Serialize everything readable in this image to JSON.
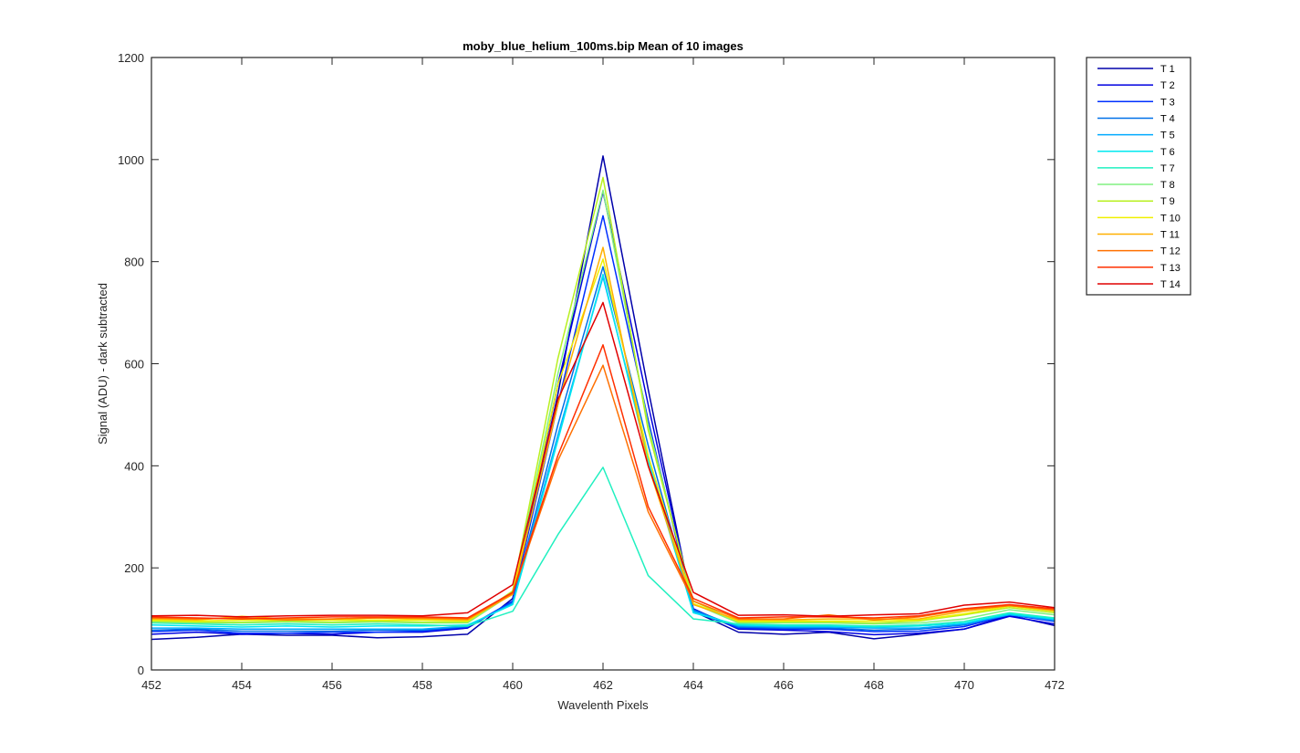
{
  "chart_data": {
    "type": "line",
    "title": "moby_blue_helium_100ms.bip  Mean of 10 images",
    "xlabel": "Wavelenth Pixels",
    "ylabel": "Signal (ADU) - dark subtracted",
    "xlim": [
      452,
      472
    ],
    "ylim": [
      0,
      1200
    ],
    "xticks": [
      452,
      454,
      456,
      458,
      460,
      462,
      464,
      466,
      468,
      470,
      472
    ],
    "yticks": [
      0,
      200,
      400,
      600,
      800,
      1000,
      1200
    ],
    "grid": false,
    "legend_position": "outside-top-right",
    "x": [
      452,
      453,
      454,
      455,
      456,
      457,
      458,
      459,
      460,
      461,
      462,
      463,
      464,
      465,
      466,
      467,
      468,
      469,
      470,
      471,
      472
    ],
    "series": [
      {
        "name": "T 1",
        "color": "#0000AA",
        "values": [
          60,
          64,
          70,
          68,
          68,
          63,
          65,
          70,
          140,
          540,
          1007,
          550,
          115,
          74,
          70,
          74,
          61,
          70,
          80,
          107,
          87
        ]
      },
      {
        "name": "T 2",
        "color": "#0000E0",
        "values": [
          70,
          74,
          70,
          72,
          70,
          74,
          74,
          82,
          135,
          560,
          937,
          520,
          120,
          80,
          78,
          75,
          69,
          72,
          80,
          105,
          90
        ]
      },
      {
        "name": "T 3",
        "color": "#0030FF",
        "values": [
          75,
          78,
          72,
          72,
          74,
          74,
          76,
          84,
          135,
          520,
          890,
          490,
          115,
          82,
          80,
          80,
          75,
          76,
          85,
          108,
          95
        ]
      },
      {
        "name": "T 4",
        "color": "#0070E8",
        "values": [
          78,
          80,
          76,
          76,
          76,
          78,
          78,
          85,
          132,
          480,
          790,
          440,
          118,
          84,
          82,
          82,
          78,
          80,
          88,
          110,
          96
        ]
      },
      {
        "name": "T 5",
        "color": "#00AAFF",
        "values": [
          82,
          82,
          80,
          80,
          80,
          80,
          80,
          86,
          130,
          460,
          770,
          420,
          115,
          86,
          84,
          84,
          82,
          82,
          90,
          108,
          98
        ]
      },
      {
        "name": "T 6",
        "color": "#00E8F0",
        "values": [
          88,
          86,
          84,
          86,
          84,
          86,
          86,
          88,
          128,
          450,
          775,
          410,
          112,
          88,
          86,
          86,
          84,
          86,
          92,
          110,
          100
        ]
      },
      {
        "name": "T 7",
        "color": "#20F0C0",
        "values": [
          92,
          90,
          88,
          90,
          88,
          90,
          88,
          86,
          115,
          265,
          397,
          185,
          100,
          90,
          88,
          88,
          86,
          88,
          95,
          112,
          102
        ]
      },
      {
        "name": "T 8",
        "color": "#80F080",
        "values": [
          94,
          92,
          92,
          94,
          92,
          94,
          92,
          92,
          150,
          580,
          940,
          480,
          130,
          92,
          92,
          92,
          90,
          92,
          100,
          118,
          108
        ]
      },
      {
        "name": "T 9",
        "color": "#B8F020",
        "values": [
          96,
          94,
          94,
          96,
          94,
          96,
          94,
          94,
          155,
          610,
          965,
          470,
          135,
          94,
          94,
          94,
          92,
          96,
          108,
          122,
          112
        ]
      },
      {
        "name": "T 10",
        "color": "#F0F000",
        "values": [
          98,
          96,
          98,
          98,
          98,
          98,
          98,
          96,
          150,
          560,
          805,
          420,
          130,
          96,
          96,
          96,
          96,
          98,
          110,
          125,
          115
        ]
      },
      {
        "name": "T 11",
        "color": "#FFB000",
        "values": [
          100,
          98,
          105,
          100,
          100,
          102,
          100,
          98,
          148,
          520,
          828,
          400,
          128,
          98,
          98,
          100,
          100,
          100,
          115,
          126,
          116
        ]
      },
      {
        "name": "T 12",
        "color": "#FF7000",
        "values": [
          102,
          100,
          102,
          98,
          100,
          102,
          102,
          100,
          150,
          410,
          597,
          310,
          135,
          100,
          100,
          108,
          98,
          104,
          118,
          126,
          118
        ]
      },
      {
        "name": "T 13",
        "color": "#FF3000",
        "values": [
          104,
          102,
          100,
          102,
          104,
          104,
          104,
          102,
          152,
          420,
          637,
          320,
          140,
          102,
          104,
          104,
          102,
          106,
          120,
          128,
          120
        ]
      },
      {
        "name": "T 14",
        "color": "#E00000",
        "values": [
          106,
          107,
          104,
          106,
          107,
          107,
          106,
          112,
          167,
          530,
          720,
          400,
          152,
          107,
          108,
          105,
          108,
          110,
          127,
          133,
          122
        ]
      }
    ]
  }
}
